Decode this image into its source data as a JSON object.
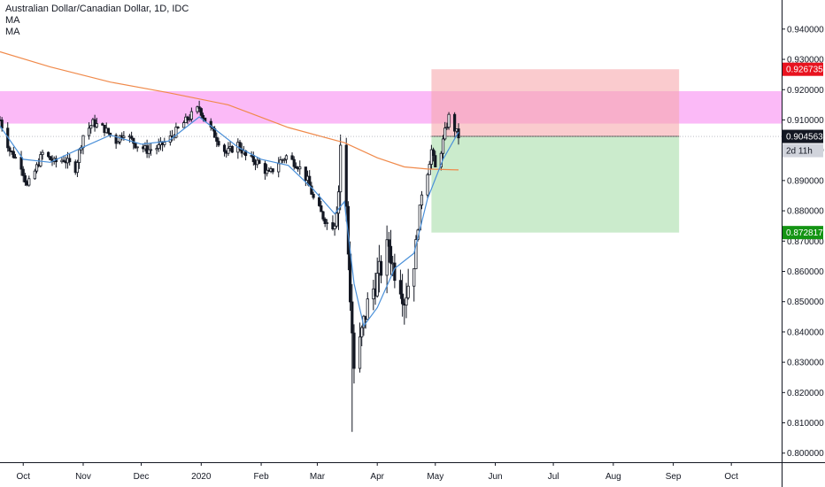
{
  "chart_data": {
    "type": "candlestick",
    "title": "Australian Dollar/Canadian Dollar, 1D, IDC",
    "indicators": [
      "MA",
      "MA"
    ],
    "y_ticks": [
      "0.940000",
      "0.930000",
      "0.920000",
      "0.910000",
      "0.900000",
      "0.890000",
      "0.880000",
      "0.870000",
      "0.860000",
      "0.850000",
      "0.840000",
      "0.830000",
      "0.820000",
      "0.810000",
      "0.800000"
    ],
    "y_tick_values": [
      0.94,
      0.93,
      0.92,
      0.91,
      0.9,
      0.89,
      0.88,
      0.87,
      0.86,
      0.85,
      0.84,
      0.83,
      0.82,
      0.81,
      0.8
    ],
    "x_labels": [
      "Oct",
      "Nov",
      "Dec",
      "2020",
      "Feb",
      "Mar",
      "Apr",
      "May",
      "Jun",
      "Jul",
      "Aug",
      "Sep",
      "Oct"
    ],
    "x_label_dates": [
      "2019-10-01",
      "2019-11-01",
      "2019-12-01",
      "2020-01-01",
      "2020-02-01",
      "2020-03-01",
      "2020-04-01",
      "2020-05-01",
      "2020-06-01",
      "2020-07-01",
      "2020-08-01",
      "2020-09-01",
      "2020-10-01"
    ],
    "ylim": [
      0.797,
      0.9496
    ],
    "xlim": [
      "2019-09-19",
      "2020-10-27"
    ],
    "candle_path": [
      [
        "2019-09-19",
        0.91
      ],
      [
        "2019-09-24",
        0.9
      ],
      [
        "2019-09-30",
        0.895
      ],
      [
        "2019-10-03",
        0.888
      ],
      [
        "2019-10-07",
        0.893
      ],
      [
        "2019-10-11",
        0.899
      ],
      [
        "2019-10-17",
        0.896
      ],
      [
        "2019-10-22",
        0.897
      ],
      [
        "2019-10-28",
        0.894
      ],
      [
        "2019-11-01",
        0.905
      ],
      [
        "2019-11-06",
        0.909
      ],
      [
        "2019-11-12",
        0.907
      ],
      [
        "2019-11-18",
        0.903
      ],
      [
        "2019-11-22",
        0.906
      ],
      [
        "2019-11-28",
        0.902
      ],
      [
        "2019-12-04",
        0.9
      ],
      [
        "2019-12-10",
        0.901
      ],
      [
        "2019-12-16",
        0.904
      ],
      [
        "2019-12-20",
        0.907
      ],
      [
        "2019-12-26",
        0.911
      ],
      [
        "2019-12-31",
        0.914
      ],
      [
        "2020-01-03",
        0.91
      ],
      [
        "2020-01-08",
        0.905
      ],
      [
        "2020-01-14",
        0.899
      ],
      [
        "2020-01-20",
        0.902
      ],
      [
        "2020-01-24",
        0.898
      ],
      [
        "2020-01-30",
        0.896
      ],
      [
        "2020-02-05",
        0.892
      ],
      [
        "2020-02-10",
        0.896
      ],
      [
        "2020-02-14",
        0.898
      ],
      [
        "2020-02-20",
        0.895
      ],
      [
        "2020-02-25",
        0.89
      ],
      [
        "2020-02-28",
        0.884
      ],
      [
        "2020-03-04",
        0.878
      ],
      [
        "2020-03-06",
        0.876
      ],
      [
        "2020-03-10",
        0.878
      ],
      [
        "2020-03-12",
        0.887
      ],
      [
        "2020-03-13",
        0.902
      ],
      [
        "2020-03-16",
        0.88
      ],
      [
        "2020-03-18",
        0.852
      ],
      [
        "2020-03-19",
        0.84
      ],
      [
        "2020-03-20",
        0.828
      ],
      [
        "2020-03-23",
        0.836
      ],
      [
        "2020-03-25",
        0.843
      ],
      [
        "2020-03-27",
        0.849
      ],
      [
        "2020-03-31",
        0.856
      ],
      [
        "2020-04-03",
        0.861
      ],
      [
        "2020-04-07",
        0.869
      ],
      [
        "2020-04-09",
        0.862
      ],
      [
        "2020-04-13",
        0.856
      ],
      [
        "2020-04-15",
        0.851
      ],
      [
        "2020-04-17",
        0.856
      ],
      [
        "2020-04-20",
        0.864
      ],
      [
        "2020-04-22",
        0.875
      ],
      [
        "2020-04-24",
        0.886
      ],
      [
        "2020-04-27",
        0.893
      ],
      [
        "2020-04-29",
        0.9
      ],
      [
        "2020-05-01",
        0.894
      ],
      [
        "2020-05-04",
        0.9
      ],
      [
        "2020-05-06",
        0.906
      ],
      [
        "2020-05-08",
        0.911
      ],
      [
        "2020-05-11",
        0.907
      ],
      [
        "2020-05-13",
        0.9046
      ]
    ],
    "ma_fast": [
      [
        "2019-09-19",
        0.908
      ],
      [
        "2019-10-01",
        0.897
      ],
      [
        "2019-10-15",
        0.896
      ],
      [
        "2019-11-01",
        0.901
      ],
      [
        "2019-11-15",
        0.905
      ],
      [
        "2019-12-01",
        0.902
      ],
      [
        "2019-12-15",
        0.903
      ],
      [
        "2019-12-31",
        0.911
      ],
      [
        "2020-01-10",
        0.906
      ],
      [
        "2020-01-20",
        0.901
      ],
      [
        "2020-02-01",
        0.897
      ],
      [
        "2020-02-15",
        0.895
      ],
      [
        "2020-02-28",
        0.887
      ],
      [
        "2020-03-10",
        0.879
      ],
      [
        "2020-03-15",
        0.883
      ],
      [
        "2020-03-20",
        0.856
      ],
      [
        "2020-03-25",
        0.842
      ],
      [
        "2020-04-01",
        0.848
      ],
      [
        "2020-04-10",
        0.861
      ],
      [
        "2020-04-20",
        0.866
      ],
      [
        "2020-04-27",
        0.884
      ],
      [
        "2020-05-05",
        0.897
      ],
      [
        "2020-05-13",
        0.906
      ]
    ],
    "ma_slow": [
      [
        "2019-09-19",
        0.9325
      ],
      [
        "2019-10-15",
        0.9275
      ],
      [
        "2019-11-15",
        0.9225
      ],
      [
        "2019-12-15",
        0.919
      ],
      [
        "2020-01-15",
        0.915
      ],
      [
        "2020-02-15",
        0.9075
      ],
      [
        "2020-03-15",
        0.9025
      ],
      [
        "2020-04-01",
        0.8975
      ],
      [
        "2020-04-15",
        0.8945
      ],
      [
        "2020-04-27",
        0.8938
      ],
      [
        "2020-05-13",
        0.8935
      ]
    ],
    "resistance_zone": {
      "from": 0.9088,
      "to": 0.9195
    },
    "position": {
      "start": "2020-04-29",
      "end": "2020-09-04",
      "entry": 0.904563,
      "target": 0.926735,
      "stop": 0.872817
    },
    "labels": {
      "target": "0.926735",
      "price": "0.904563",
      "countdown": "2d 11h",
      "stop": "0.872817"
    },
    "colors": {
      "ma_fast": "#4a90d9",
      "ma_slow": "#f08a4b",
      "zone": "#fbb6f7",
      "target_fill": "#f7a9ae",
      "target_badge": "#e8131f",
      "stop_fill": "#c8eac9",
      "stop_badge": "#149414",
      "price_badge": "#131722",
      "countdown_badge": "#d1d4dc"
    }
  }
}
